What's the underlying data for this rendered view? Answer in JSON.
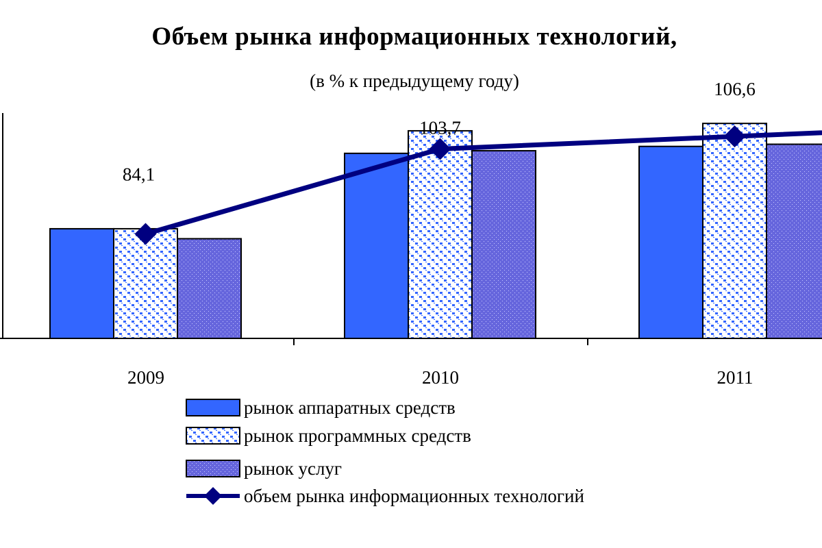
{
  "chart_data": {
    "type": "bar",
    "title": "Объем рынка информационных технологий,",
    "subtitle": "(в % к предыдущему году)",
    "xlabel": "",
    "ylabel": "",
    "ylim": [
      60,
      112
    ],
    "grid": false,
    "categories": [
      "2009",
      "2010",
      "2011"
    ],
    "series": [
      {
        "name": "рынок аппаратных средств",
        "kind": "bar",
        "pattern": "solid",
        "color": "#3366ff",
        "values": [
          85.3,
          102.7,
          104.3
        ]
      },
      {
        "name": "рынок программных средств",
        "kind": "bar",
        "pattern": "checker",
        "color": "#3366ff",
        "values": [
          85.3,
          107.9,
          109.6
        ]
      },
      {
        "name": "рынок услуг",
        "kind": "bar",
        "pattern": "dots",
        "color": "#6666dd",
        "values": [
          83.0,
          103.3,
          104.8
        ]
      },
      {
        "name": "объем рынка информационных технологий",
        "kind": "line",
        "marker": "diamond",
        "color": "#000080",
        "values": [
          84.1,
          103.7,
          106.6
        ]
      }
    ],
    "data_labels": [
      "84,1",
      "103,7",
      "106,6"
    ],
    "legend_position": "bottom"
  }
}
